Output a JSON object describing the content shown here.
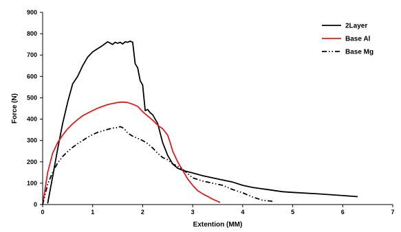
{
  "chart_data": {
    "type": "line",
    "title": "",
    "xlabel": "Extention (MM)",
    "ylabel": "Force (N)",
    "xlim": [
      0,
      7
    ],
    "ylim": [
      0,
      900
    ],
    "xticks": [
      "0",
      "1",
      "2",
      "3",
      "4",
      "5",
      "6",
      "7"
    ],
    "yticks": [
      "0",
      "100",
      "200",
      "300",
      "400",
      "500",
      "600",
      "700",
      "800",
      "900"
    ],
    "grid": false,
    "legend_position": "top-right",
    "series": [
      {
        "name": "2Layer",
        "color": "#000000",
        "dash": "solid",
        "x": [
          0.1,
          0.2,
          0.3,
          0.4,
          0.5,
          0.6,
          0.7,
          0.8,
          0.9,
          1.0,
          1.1,
          1.2,
          1.3,
          1.4,
          1.45,
          1.5,
          1.55,
          1.6,
          1.65,
          1.7,
          1.75,
          1.8,
          1.85,
          1.9,
          1.95,
          2.0,
          2.05,
          2.1,
          2.15,
          2.2,
          2.3,
          2.4,
          2.5,
          2.6,
          2.7,
          2.8,
          3.0,
          3.2,
          3.4,
          3.6,
          3.8,
          4.0,
          4.2,
          4.5,
          4.8,
          5.0,
          5.5,
          6.0,
          6.3
        ],
        "y": [
          5,
          130,
          260,
          380,
          480,
          565,
          600,
          650,
          690,
          715,
          730,
          745,
          762,
          750,
          760,
          755,
          760,
          752,
          762,
          760,
          765,
          760,
          660,
          640,
          580,
          560,
          440,
          445,
          430,
          420,
          380,
          290,
          230,
          190,
          170,
          160,
          148,
          135,
          125,
          115,
          105,
          90,
          80,
          70,
          60,
          57,
          50,
          42,
          37
        ]
      },
      {
        "name": "Base Al",
        "color": "#e31a1c",
        "dash": "solid",
        "x": [
          0.0,
          0.1,
          0.2,
          0.3,
          0.4,
          0.5,
          0.6,
          0.7,
          0.8,
          0.9,
          1.0,
          1.1,
          1.2,
          1.3,
          1.4,
          1.5,
          1.6,
          1.7,
          1.8,
          1.9,
          2.0,
          2.1,
          2.2,
          2.3,
          2.4,
          2.5,
          2.55,
          2.6,
          2.7,
          2.8,
          2.9,
          3.0,
          3.1,
          3.2,
          3.3,
          3.4,
          3.5,
          3.55
        ],
        "y": [
          0,
          150,
          240,
          290,
          325,
          355,
          378,
          398,
          416,
          428,
          440,
          451,
          460,
          468,
          473,
          478,
          480,
          478,
          470,
          460,
          435,
          415,
          395,
          372,
          355,
          325,
          290,
          250,
          200,
          160,
          120,
          90,
          65,
          50,
          38,
          25,
          15,
          10
        ]
      },
      {
        "name": "Base Mg",
        "color": "#000000",
        "dash": "dashdotdot",
        "x": [
          0.0,
          0.1,
          0.2,
          0.3,
          0.4,
          0.5,
          0.6,
          0.7,
          0.8,
          0.9,
          1.0,
          1.1,
          1.2,
          1.3,
          1.4,
          1.5,
          1.55,
          1.6,
          1.65,
          1.7,
          1.8,
          1.9,
          2.0,
          2.1,
          2.2,
          2.3,
          2.4,
          2.5,
          2.6,
          2.7,
          2.8,
          2.9,
          3.0,
          3.2,
          3.4,
          3.6,
          3.8,
          4.0,
          4.2,
          4.4,
          4.6
        ],
        "y": [
          0,
          95,
          150,
          195,
          225,
          248,
          268,
          285,
          300,
          315,
          328,
          338,
          345,
          352,
          358,
          360,
          365,
          360,
          350,
          335,
          320,
          310,
          300,
          285,
          265,
          240,
          220,
          210,
          190,
          180,
          165,
          145,
          125,
          110,
          100,
          90,
          70,
          55,
          35,
          20,
          15
        ]
      }
    ]
  }
}
